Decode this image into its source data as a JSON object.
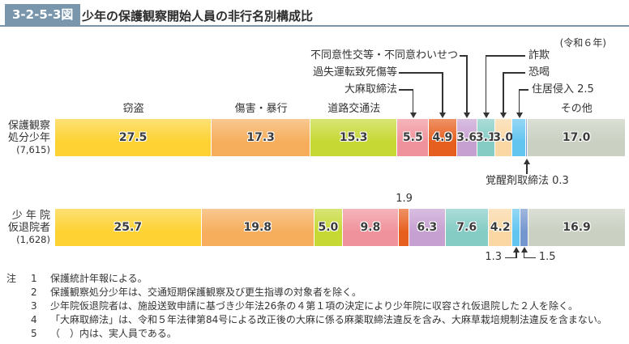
{
  "header": {
    "figure_number": "3-2-5-3図",
    "title": "少年の保護観察開始人員の非行名別構成比",
    "year_note": "(令和６年)"
  },
  "colors": {
    "accent": "#7a96ac",
    "line": "#333333",
    "text": "#333333",
    "segment_colors": [
      "#fdd232",
      "#f6ae5c",
      "#c6d834",
      "#f0929b",
      "#e75f1e",
      "#c7a0d2",
      "#85ccc5",
      "#fad7a3",
      "#62c5f0",
      "#7496ce",
      "#cad0c2"
    ]
  },
  "chart_data": {
    "type": "bar",
    "variant": "horizontal-stacked-100percent",
    "unit": "%",
    "title": "少年の保護観察開始人員の非行名別構成比",
    "categories": [
      "窃盗",
      "傷害・暴行",
      "道路交通法",
      "大麻取締法",
      "過失運転致死傷等",
      "不同意性交等・不同意わいせつ",
      "詐欺",
      "恐喝",
      "住居侵入",
      "覚醒剤取締法",
      "その他"
    ],
    "category_keys": [
      "theft",
      "injury-assault",
      "road-traffic-act",
      "cannabis-control-act",
      "negligent-driving-causing-death-injury",
      "nonconsensual-sexual-offense",
      "fraud",
      "extortion",
      "trespass",
      "stimulants-control-act",
      "other"
    ],
    "series": [
      {
        "name": "保護観察処分少年",
        "name_lines": [
          "保護観察",
          "処分少年"
        ],
        "count": "(7,615)",
        "values": [
          27.5,
          17.3,
          15.3,
          5.5,
          4.9,
          3.6,
          3.1,
          3.0,
          2.5,
          0.3,
          17.0
        ]
      },
      {
        "name": "少年院仮退院者",
        "name_lines": [
          "少 年 院",
          "仮退院者"
        ],
        "count": "(1,628)",
        "values": [
          25.7,
          19.8,
          5.0,
          9.8,
          1.9,
          6.3,
          7.6,
          4.2,
          1.3,
          1.5,
          16.9
        ]
      }
    ]
  },
  "notes": {
    "heading": "注",
    "items": [
      {
        "num": "1",
        "text": "保護統計年報による。"
      },
      {
        "num": "2",
        "text": "保護観察処分少年は、交通短期保護観察及び更生指導の対象者を除く。"
      },
      {
        "num": "3",
        "text": "少年院仮退院者は、施設送致申請に基づき少年法26条の４第１項の決定により少年院に収容され仮退院した２人を除く。"
      },
      {
        "num": "4",
        "text": "「大麻取締法」は、令和５年法律第84号による改正後の大麻に係る麻薬取締法違反を含み、大麻草栽培規制法違反を含まない。"
      },
      {
        "num": "5",
        "text": "（　）内は、実人員である。"
      }
    ]
  }
}
